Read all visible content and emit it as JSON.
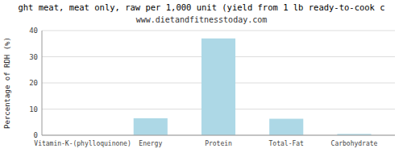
{
  "chart_data": {
    "type": "bar",
    "title": "ght meat, meat only, raw per 1,000 unit (yield from 1 lb ready-to-cook c",
    "subtitle": "www.dietandfitnesstoday.com",
    "ylabel": "Percentage of RDH (%)",
    "categories": [
      "Vitamin-K-(phylloquinone)",
      "Energy",
      "Protein",
      "Total-Fat",
      "Carbohydrate"
    ],
    "values": [
      0,
      6.5,
      37,
      6.3,
      0.5
    ],
    "color": "#add8e6",
    "ylim": [
      0,
      40
    ],
    "yticks": [
      0,
      10,
      20,
      30,
      40
    ],
    "grid": true
  }
}
